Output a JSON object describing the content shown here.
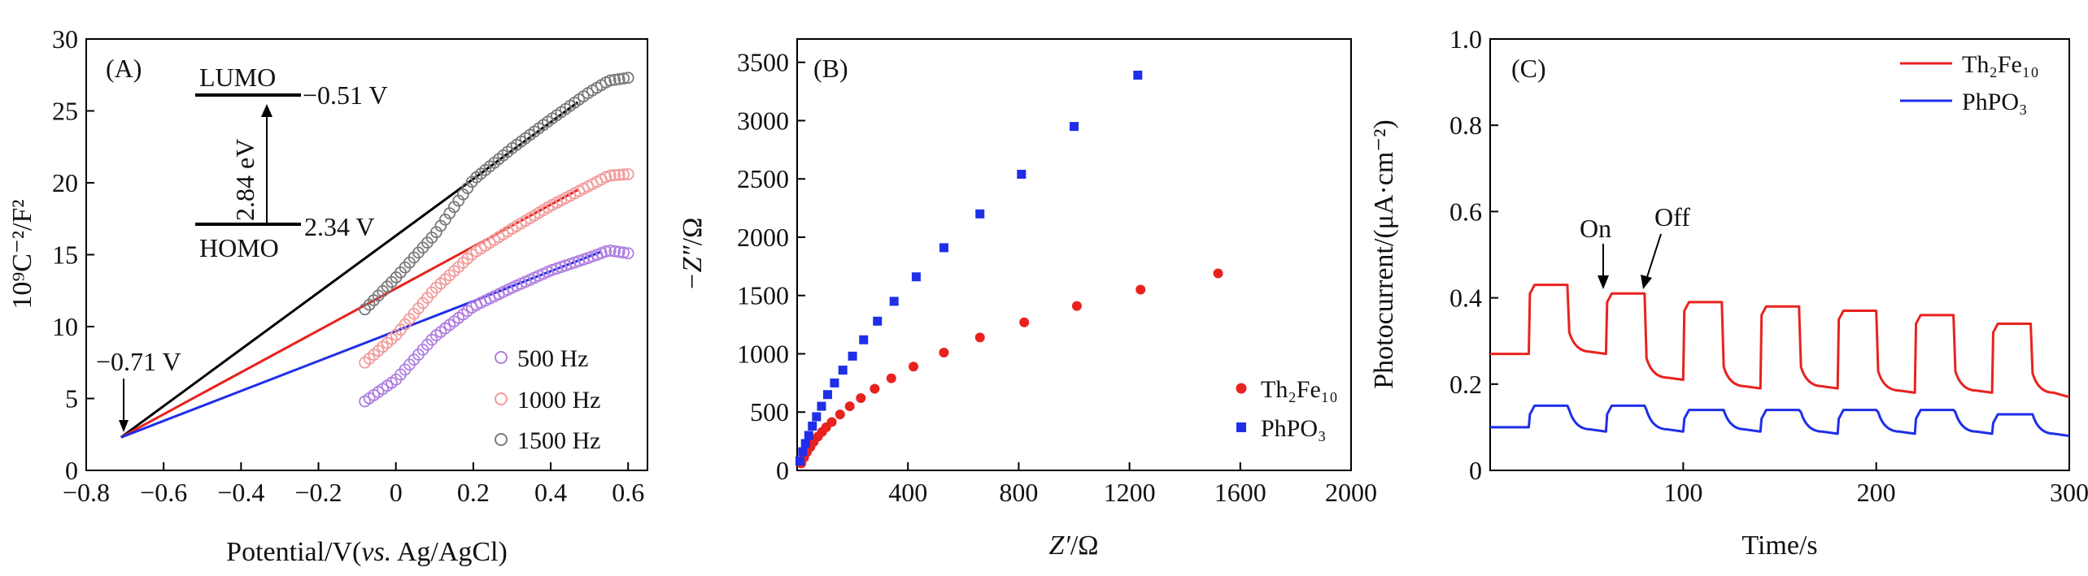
{
  "chart_data": [
    {
      "panel": "(A)",
      "type": "scatter",
      "xlabel_prefix": "Potential/V(",
      "xlabel_italic": "vs.",
      "xlabel_suffix": " Ag/AgCl)",
      "ylabel": "10⁹C⁻²/F²",
      "xlim": [
        -0.8,
        0.65
      ],
      "ylim": [
        0,
        30
      ],
      "xticks": [
        "−0.8",
        "−0.6",
        "−0.4",
        "−0.2",
        "0",
        "0.2",
        "0.4",
        "0.6"
      ],
      "xtick_values": [
        -0.8,
        -0.6,
        -0.4,
        -0.2,
        0,
        0.2,
        0.4,
        0.6
      ],
      "yticks": [
        "0",
        "5",
        "10",
        "15",
        "20",
        "25",
        "30"
      ],
      "ytick_values": [
        0,
        5,
        10,
        15,
        20,
        25,
        30
      ],
      "series": [
        {
          "name": "500 Hz",
          "color": "#b07ee0",
          "x_start": -0.08,
          "x_end": 0.6,
          "points": [
            [
              -0.08,
              4.8
            ],
            [
              0,
              6.3
            ],
            [
              0.1,
              9.3
            ],
            [
              0.2,
              11.4
            ],
            [
              0.3,
              12.7
            ],
            [
              0.4,
              13.9
            ],
            [
              0.5,
              14.8
            ],
            [
              0.55,
              15.3
            ],
            [
              0.6,
              15.1
            ]
          ]
        },
        {
          "name": "1000 Hz",
          "color": "#f19b9b",
          "x_start": -0.08,
          "x_end": 0.6,
          "points": [
            [
              -0.08,
              7.5
            ],
            [
              0,
              9.4
            ],
            [
              0.1,
              12.6
            ],
            [
              0.2,
              15.1
            ],
            [
              0.3,
              16.8
            ],
            [
              0.4,
              18.4
            ],
            [
              0.5,
              19.8
            ],
            [
              0.55,
              20.5
            ],
            [
              0.6,
              20.6
            ]
          ]
        },
        {
          "name": "1500 Hz",
          "color": "#7a7a7a",
          "x_start": -0.08,
          "x_end": 0.6,
          "points": [
            [
              -0.08,
              11.2
            ],
            [
              0,
              13.4
            ],
            [
              0.1,
              16.4
            ],
            [
              0.2,
              20.2
            ],
            [
              0.3,
              22.4
            ],
            [
              0.4,
              24.4
            ],
            [
              0.5,
              26.3
            ],
            [
              0.55,
              27.1
            ],
            [
              0.6,
              27.3
            ]
          ]
        }
      ],
      "fit_lines": [
        {
          "color": "#000000",
          "x": [
            -0.71,
            0.47
          ],
          "y": [
            2.3,
            25.6
          ]
        },
        {
          "color": "#e8221f",
          "x": [
            -0.71,
            0.47
          ],
          "y": [
            2.3,
            19.5
          ]
        },
        {
          "color": "#1f2ee8",
          "x": [
            -0.71,
            0.53
          ],
          "y": [
            2.3,
            15.2
          ]
        }
      ],
      "intercept_label": "−0.71 V",
      "inset": {
        "lumo_label": "LUMO",
        "lumo_value": "−0.51 V",
        "gap_label": "2.84 eV",
        "homo_label": "HOMO",
        "homo_value": "2.34 V"
      }
    },
    {
      "panel": "(B)",
      "type": "scatter",
      "xlabel_italic": "Z′",
      "xlabel_suffix": "/Ω",
      "ylabel_italic": "−Z″",
      "ylabel_suffix": "/Ω",
      "xlim": [
        0,
        2000
      ],
      "ylim": [
        0,
        3700
      ],
      "xticks": [
        "400",
        "800",
        "1200",
        "1600",
        "2000"
      ],
      "xtick_values": [
        400,
        800,
        1200,
        1600,
        2000
      ],
      "yticks": [
        "0",
        "500",
        "1000",
        "1500",
        "2000",
        "2500",
        "3000",
        "3500"
      ],
      "ytick_values": [
        0,
        500,
        1000,
        1500,
        2000,
        2500,
        3000,
        3500
      ],
      "series": [
        {
          "name": "Th₂Fe₁₀",
          "marker": "circle",
          "color": "#e8221f",
          "points": [
            [
              15,
              60
            ],
            [
              25,
              110
            ],
            [
              35,
              155
            ],
            [
              48,
              200
            ],
            [
              60,
              245
            ],
            [
              75,
              290
            ],
            [
              90,
              330
            ],
            [
              105,
              370
            ],
            [
              125,
              415
            ],
            [
              155,
              480
            ],
            [
              190,
              550
            ],
            [
              230,
              620
            ],
            [
              280,
              700
            ],
            [
              340,
              790
            ],
            [
              420,
              890
            ],
            [
              530,
              1010
            ],
            [
              660,
              1140
            ],
            [
              820,
              1270
            ],
            [
              1010,
              1410
            ],
            [
              1240,
              1550
            ],
            [
              1520,
              1690
            ]
          ]
        },
        {
          "name": "PhPO₃",
          "marker": "square",
          "color": "#1f2ee8",
          "points": [
            [
              10,
              80
            ],
            [
              20,
              160
            ],
            [
              30,
              230
            ],
            [
              42,
              300
            ],
            [
              55,
              380
            ],
            [
              70,
              460
            ],
            [
              88,
              550
            ],
            [
              110,
              650
            ],
            [
              135,
              750
            ],
            [
              165,
              860
            ],
            [
              200,
              980
            ],
            [
              240,
              1120
            ],
            [
              290,
              1280
            ],
            [
              350,
              1450
            ],
            [
              430,
              1660
            ],
            [
              530,
              1910
            ],
            [
              660,
              2200
            ],
            [
              810,
              2540
            ],
            [
              1000,
              2950
            ],
            [
              1230,
              3390
            ]
          ]
        }
      ]
    },
    {
      "panel": "(C)",
      "type": "line",
      "xlabel": "Time/s",
      "ylabel": "Photocurrent/(μA·cm⁻²)",
      "xlim": [
        0,
        300
      ],
      "ylim": [
        0,
        1.0
      ],
      "xticks": [
        "100",
        "200",
        "300"
      ],
      "xtick_values": [
        100,
        200,
        300
      ],
      "yticks": [
        "0",
        "0.2",
        "0.4",
        "0.6",
        "0.8",
        "1.0"
      ],
      "ytick_values": [
        0,
        0.2,
        0.4,
        0.6,
        0.8,
        1.0
      ],
      "series": [
        {
          "name": "Th₂Fe₁₀",
          "color": "#e8221f",
          "cycles": [
            [
              20,
              40,
              0.43,
              0.27
            ],
            [
              60,
              80,
              0.41,
              0.21
            ],
            [
              100,
              120,
              0.39,
              0.19
            ],
            [
              140,
              160,
              0.38,
              0.19
            ],
            [
              180,
              200,
              0.37,
              0.18
            ],
            [
              220,
              240,
              0.36,
              0.18
            ],
            [
              260,
              280,
              0.34,
              0.175
            ]
          ],
          "start": 0.27,
          "end": 0.17
        },
        {
          "name": "PhPO₃",
          "color": "#1f2ee8",
          "cycles": [
            [
              20,
              40,
              0.15,
              0.09
            ],
            [
              60,
              80,
              0.15,
              0.09
            ],
            [
              100,
              120,
              0.14,
              0.09
            ],
            [
              140,
              160,
              0.14,
              0.085
            ],
            [
              180,
              200,
              0.14,
              0.085
            ],
            [
              220,
              240,
              0.14,
              0.085
            ],
            [
              260,
              280,
              0.13,
              0.08
            ]
          ],
          "start": 0.1,
          "end": 0.08
        }
      ],
      "annotations": {
        "on_label": "On",
        "off_label": "Off"
      }
    }
  ]
}
